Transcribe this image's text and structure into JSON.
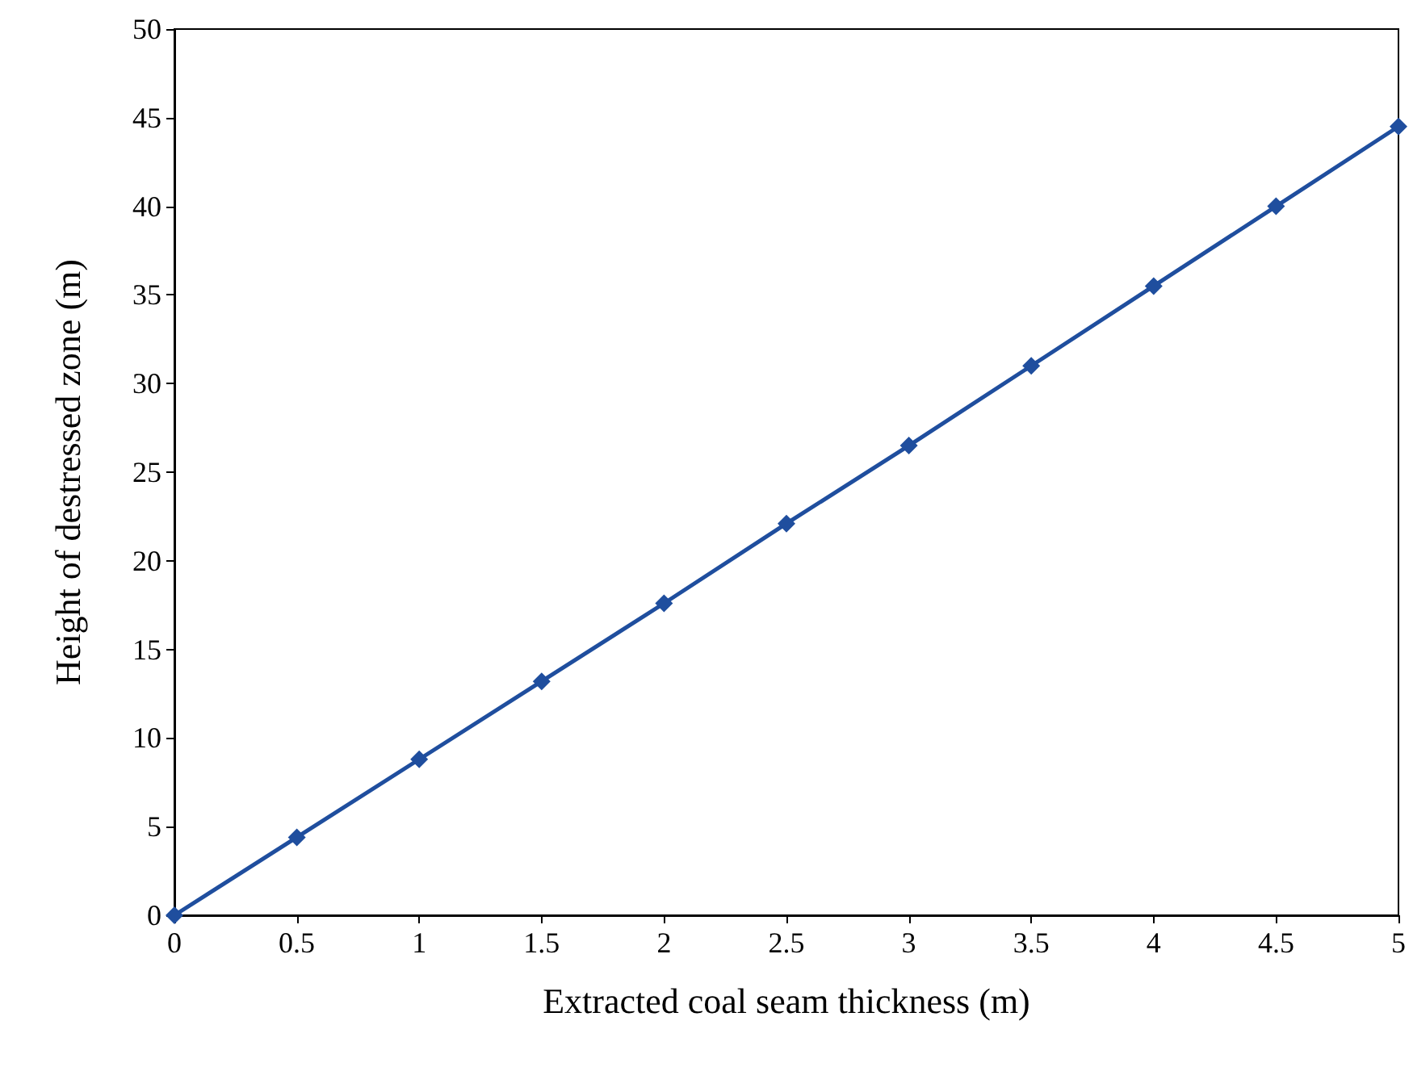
{
  "chart_data": {
    "type": "line",
    "xlabel": "Extracted coal seam thickness (m)",
    "ylabel": "Height of destressed zone (m)",
    "x": [
      0,
      0.5,
      1,
      1.5,
      2,
      2.5,
      3,
      3.5,
      4,
      4.5,
      5
    ],
    "series": [
      {
        "color": "#1f4e9e",
        "values": [
          0,
          4.4,
          8.8,
          13.2,
          17.6,
          22.1,
          26.5,
          31.0,
          35.5,
          40.0,
          44.5
        ]
      }
    ],
    "xlim": [
      0,
      5
    ],
    "xticks": [
      0,
      0.5,
      1,
      1.5,
      2,
      2.5,
      3,
      3.5,
      4,
      4.5,
      5
    ],
    "ylim": [
      0,
      50
    ],
    "yticks": [
      0,
      5,
      10,
      15,
      20,
      25,
      30,
      35,
      40,
      45,
      50
    ],
    "grid": false,
    "marker": "diamond",
    "line_style": "solid"
  }
}
